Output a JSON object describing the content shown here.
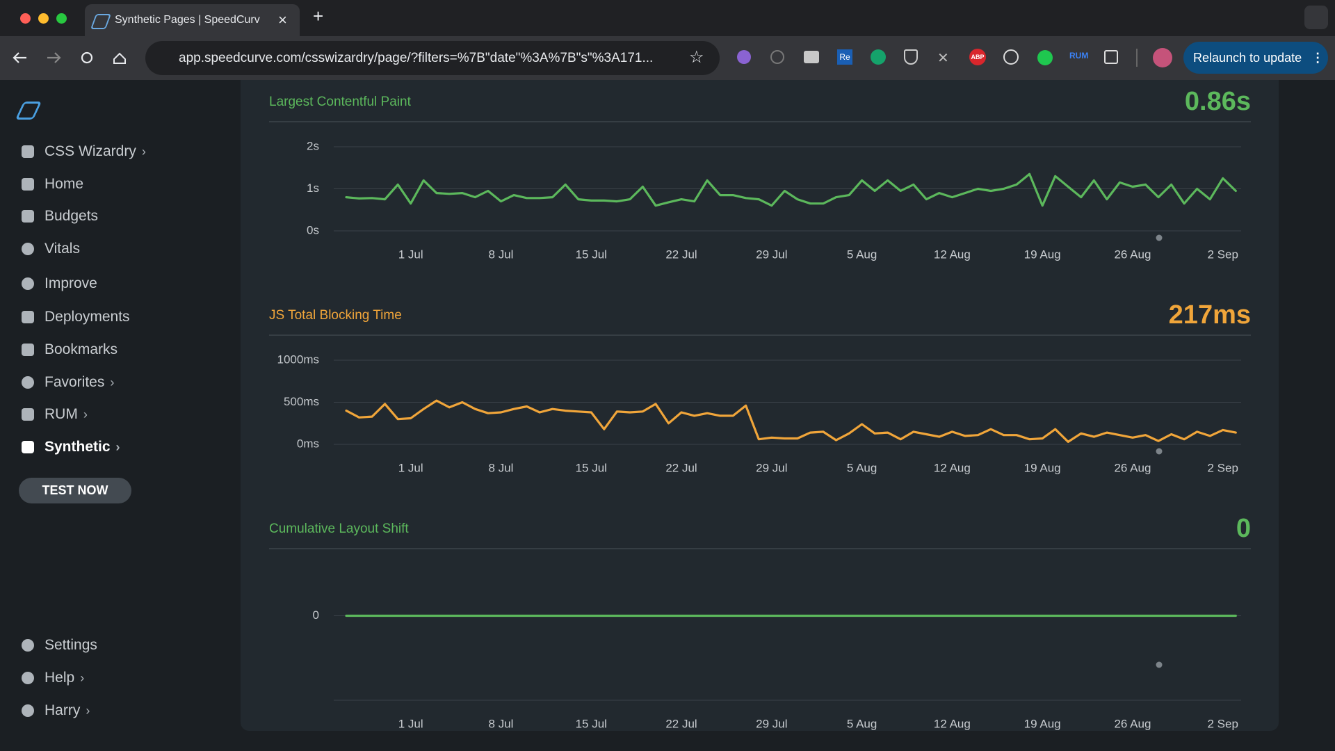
{
  "browser": {
    "tab_title": "Synthetic Pages | SpeedCurv",
    "url": "app.speedcurve.com/csswizardry/page/?filters=%7B\"date\"%3A%7B\"s\"%3A171...",
    "extensions": [
      "Re",
      "ABP",
      "RUM"
    ],
    "relaunch": "Relaunch to update"
  },
  "sidebar": {
    "org": "CSS Wizardry",
    "items": [
      "Home",
      "Budgets",
      "Vitals",
      "Improve",
      "Deployments",
      "Bookmarks",
      "Favorites",
      "RUM",
      "Synthetic"
    ],
    "button": "TEST NOW",
    "bottom": [
      "Settings",
      "Help",
      "Harry"
    ]
  },
  "chart_data": [
    {
      "type": "line",
      "title": "Largest Contentful Paint",
      "current_value": "0.86s",
      "color": "#5cb85c",
      "categories": [
        null,
        null,
        null,
        null,
        null,
        "1 Jul",
        null,
        null,
        null,
        null,
        null,
        null,
        "8 Jul",
        null,
        null,
        null,
        null,
        null,
        null,
        "15 Jul",
        null,
        null,
        null,
        null,
        null,
        null,
        "22 Jul",
        null,
        null,
        null,
        null,
        null,
        null,
        "29 Jul",
        null,
        null,
        null,
        null,
        null,
        null,
        "5 Aug",
        null,
        null,
        null,
        null,
        null,
        null,
        "12 Aug",
        null,
        null,
        null,
        null,
        null,
        null,
        "19 Aug",
        null,
        null,
        null,
        null,
        null,
        null,
        "26 Aug",
        null,
        null,
        null,
        null,
        null,
        null,
        "2 Sep",
        null
      ],
      "values": [
        0.8,
        0.77,
        0.78,
        0.75,
        1.1,
        0.65,
        1.2,
        0.9,
        0.88,
        0.9,
        0.8,
        0.95,
        0.7,
        0.85,
        0.78,
        0.78,
        0.8,
        1.1,
        0.75,
        0.72,
        0.72,
        0.7,
        0.75,
        1.05,
        0.6,
        0.68,
        0.75,
        0.7,
        1.2,
        0.85,
        0.85,
        0.78,
        0.75,
        0.6,
        0.95,
        0.75,
        0.65,
        0.65,
        0.8,
        0.85,
        1.2,
        0.95,
        1.2,
        0.95,
        1.1,
        0.75,
        0.9,
        0.8,
        0.9,
        1.0,
        0.95,
        1.0,
        1.1,
        1.35,
        0.6,
        1.3,
        1.05,
        0.8,
        1.2,
        0.75,
        1.15,
        1.05,
        1.1,
        0.8,
        1.1,
        0.65,
        1.0,
        0.75,
        1.25,
        0.95
      ],
      "ylim": [
        0,
        2
      ],
      "yticks": [
        {
          "value": 0,
          "label": "0s"
        },
        {
          "value": 1,
          "label": "1s"
        },
        {
          "value": 2,
          "label": "2s"
        }
      ]
    },
    {
      "type": "line",
      "title": "JS Total Blocking Time",
      "current_value": "217ms",
      "color": "#f0a53a",
      "categories": [
        null,
        null,
        null,
        null,
        null,
        "1 Jul",
        null,
        null,
        null,
        null,
        null,
        null,
        "8 Jul",
        null,
        null,
        null,
        null,
        null,
        null,
        "15 Jul",
        null,
        null,
        null,
        null,
        null,
        null,
        "22 Jul",
        null,
        null,
        null,
        null,
        null,
        null,
        "29 Jul",
        null,
        null,
        null,
        null,
        null,
        null,
        "5 Aug",
        null,
        null,
        null,
        null,
        null,
        null,
        "12 Aug",
        null,
        null,
        null,
        null,
        null,
        null,
        "19 Aug",
        null,
        null,
        null,
        null,
        null,
        null,
        "26 Aug",
        null,
        null,
        null,
        null,
        null,
        null,
        "2 Sep",
        null
      ],
      "values": [
        400,
        320,
        330,
        480,
        300,
        310,
        420,
        520,
        440,
        500,
        420,
        370,
        380,
        420,
        450,
        380,
        420,
        400,
        390,
        380,
        180,
        390,
        380,
        390,
        480,
        250,
        380,
        340,
        370,
        340,
        340,
        460,
        60,
        80,
        70,
        70,
        140,
        150,
        50,
        130,
        240,
        130,
        140,
        60,
        150,
        120,
        90,
        150,
        100,
        110,
        180,
        110,
        110,
        60,
        70,
        180,
        30,
        130,
        90,
        140,
        110,
        80,
        110,
        40,
        120,
        60,
        150,
        100,
        170,
        140
      ],
      "ylim": [
        0,
        1000
      ],
      "yticks": [
        {
          "value": 0,
          "label": "0ms"
        },
        {
          "value": 500,
          "label": "500ms"
        },
        {
          "value": 1000,
          "label": "1000ms"
        }
      ]
    },
    {
      "type": "line",
      "title": "Cumulative Layout Shift",
      "current_value": "0",
      "color": "#5cb85c",
      "categories": [
        null,
        null,
        null,
        null,
        null,
        "1 Jul",
        null,
        null,
        null,
        null,
        null,
        null,
        "8 Jul",
        null,
        null,
        null,
        null,
        null,
        null,
        "15 Jul",
        null,
        null,
        null,
        null,
        null,
        null,
        "22 Jul",
        null,
        null,
        null,
        null,
        null,
        null,
        "29 Jul",
        null,
        null,
        null,
        null,
        null,
        null,
        "5 Aug",
        null,
        null,
        null,
        null,
        null,
        null,
        "12 Aug",
        null,
        null,
        null,
        null,
        null,
        null,
        "19 Aug",
        null,
        null,
        null,
        null,
        null,
        null,
        "26 Aug",
        null,
        null,
        null,
        null,
        null,
        null,
        "2 Sep",
        null
      ],
      "values": [
        0,
        0,
        0,
        0,
        0,
        0,
        0,
        0,
        0,
        0,
        0,
        0,
        0,
        0,
        0,
        0,
        0,
        0,
        0,
        0,
        0,
        0,
        0,
        0,
        0,
        0,
        0,
        0,
        0,
        0,
        0,
        0,
        0,
        0,
        0,
        0,
        0,
        0,
        0,
        0,
        0,
        0,
        0,
        0,
        0,
        0,
        0,
        0,
        0,
        0,
        0,
        0,
        0,
        0,
        0,
        0,
        0,
        0,
        0,
        0,
        0,
        0,
        0,
        0,
        0,
        0,
        0,
        0,
        0,
        0
      ],
      "ylim": [
        -1,
        1
      ],
      "yticks": [
        0
      ]
    }
  ]
}
